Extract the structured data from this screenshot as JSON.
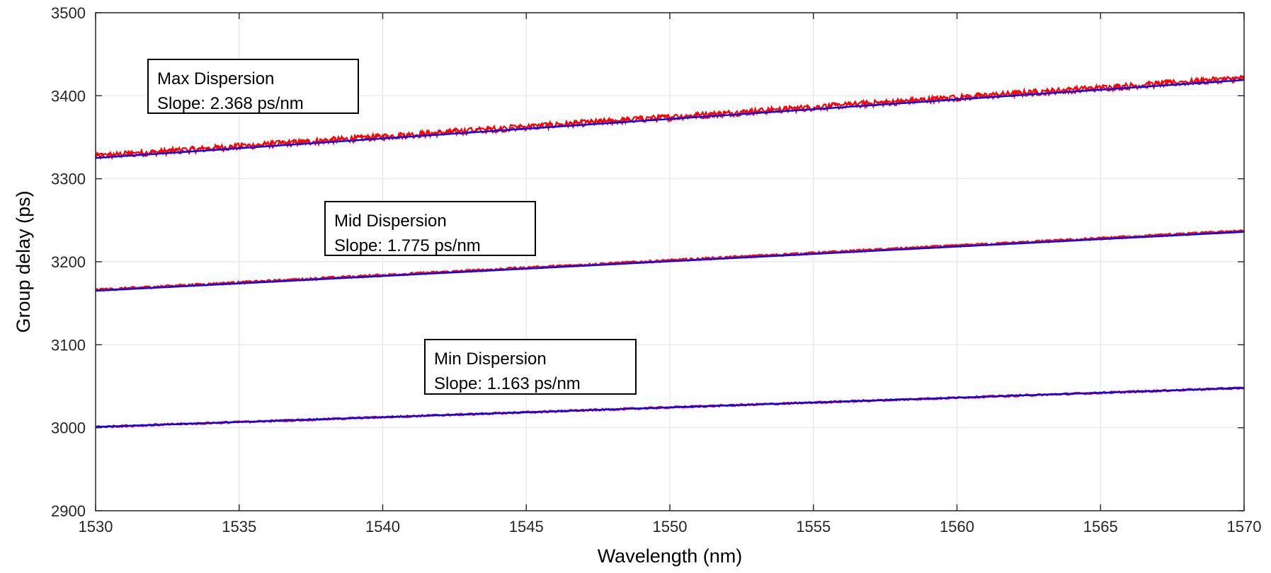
{
  "chart_data": {
    "type": "scatter",
    "xlabel": "Wavelength (nm)",
    "ylabel": "Group delay (ps)",
    "xlim": [
      1530,
      1570
    ],
    "ylim": [
      2900,
      3500
    ],
    "xticks": [
      "1530",
      "1535",
      "1540",
      "1545",
      "1550",
      "1555",
      "1560",
      "1565",
      "1570"
    ],
    "yticks": [
      "2900",
      "3000",
      "3100",
      "3200",
      "3300",
      "3400",
      "3500"
    ],
    "grid": true,
    "colors": {
      "measured": "#ff0000",
      "fit": "#0000ff",
      "axes": "#262626",
      "grid": "#e6e6e6"
    },
    "series": [
      {
        "measured": {
          "x": [
            1530,
            1570
          ],
          "y": [
            3327,
            3421
          ],
          "noise_ps": 4
        },
        "fit": {
          "x": [
            1530,
            1570
          ],
          "y": [
            3325,
            3419
          ]
        }
      },
      {
        "measured": {
          "x": [
            1530,
            1570
          ],
          "y": [
            3166,
            3237
          ],
          "noise_ps": 1.5
        },
        "fit": {
          "x": [
            1530,
            1570
          ],
          "y": [
            3165,
            3236
          ]
        }
      },
      {
        "measured": {
          "x": [
            1530,
            1570
          ],
          "y": [
            3001,
            3048
          ],
          "noise_ps": 1.2
        },
        "fit": {
          "x": [
            1530,
            1570
          ],
          "y": [
            3001,
            3048
          ]
        }
      }
    ],
    "annotations": [
      {
        "line1": "Max Dispersion",
        "line2": "Slope: 2.368 ps/nm"
      },
      {
        "line1": "Mid Dispersion",
        "line2": "Slope: 1.775 ps/nm"
      },
      {
        "line1": "Min Dispersion",
        "line2": "Slope: 1.163 ps/nm"
      }
    ]
  }
}
